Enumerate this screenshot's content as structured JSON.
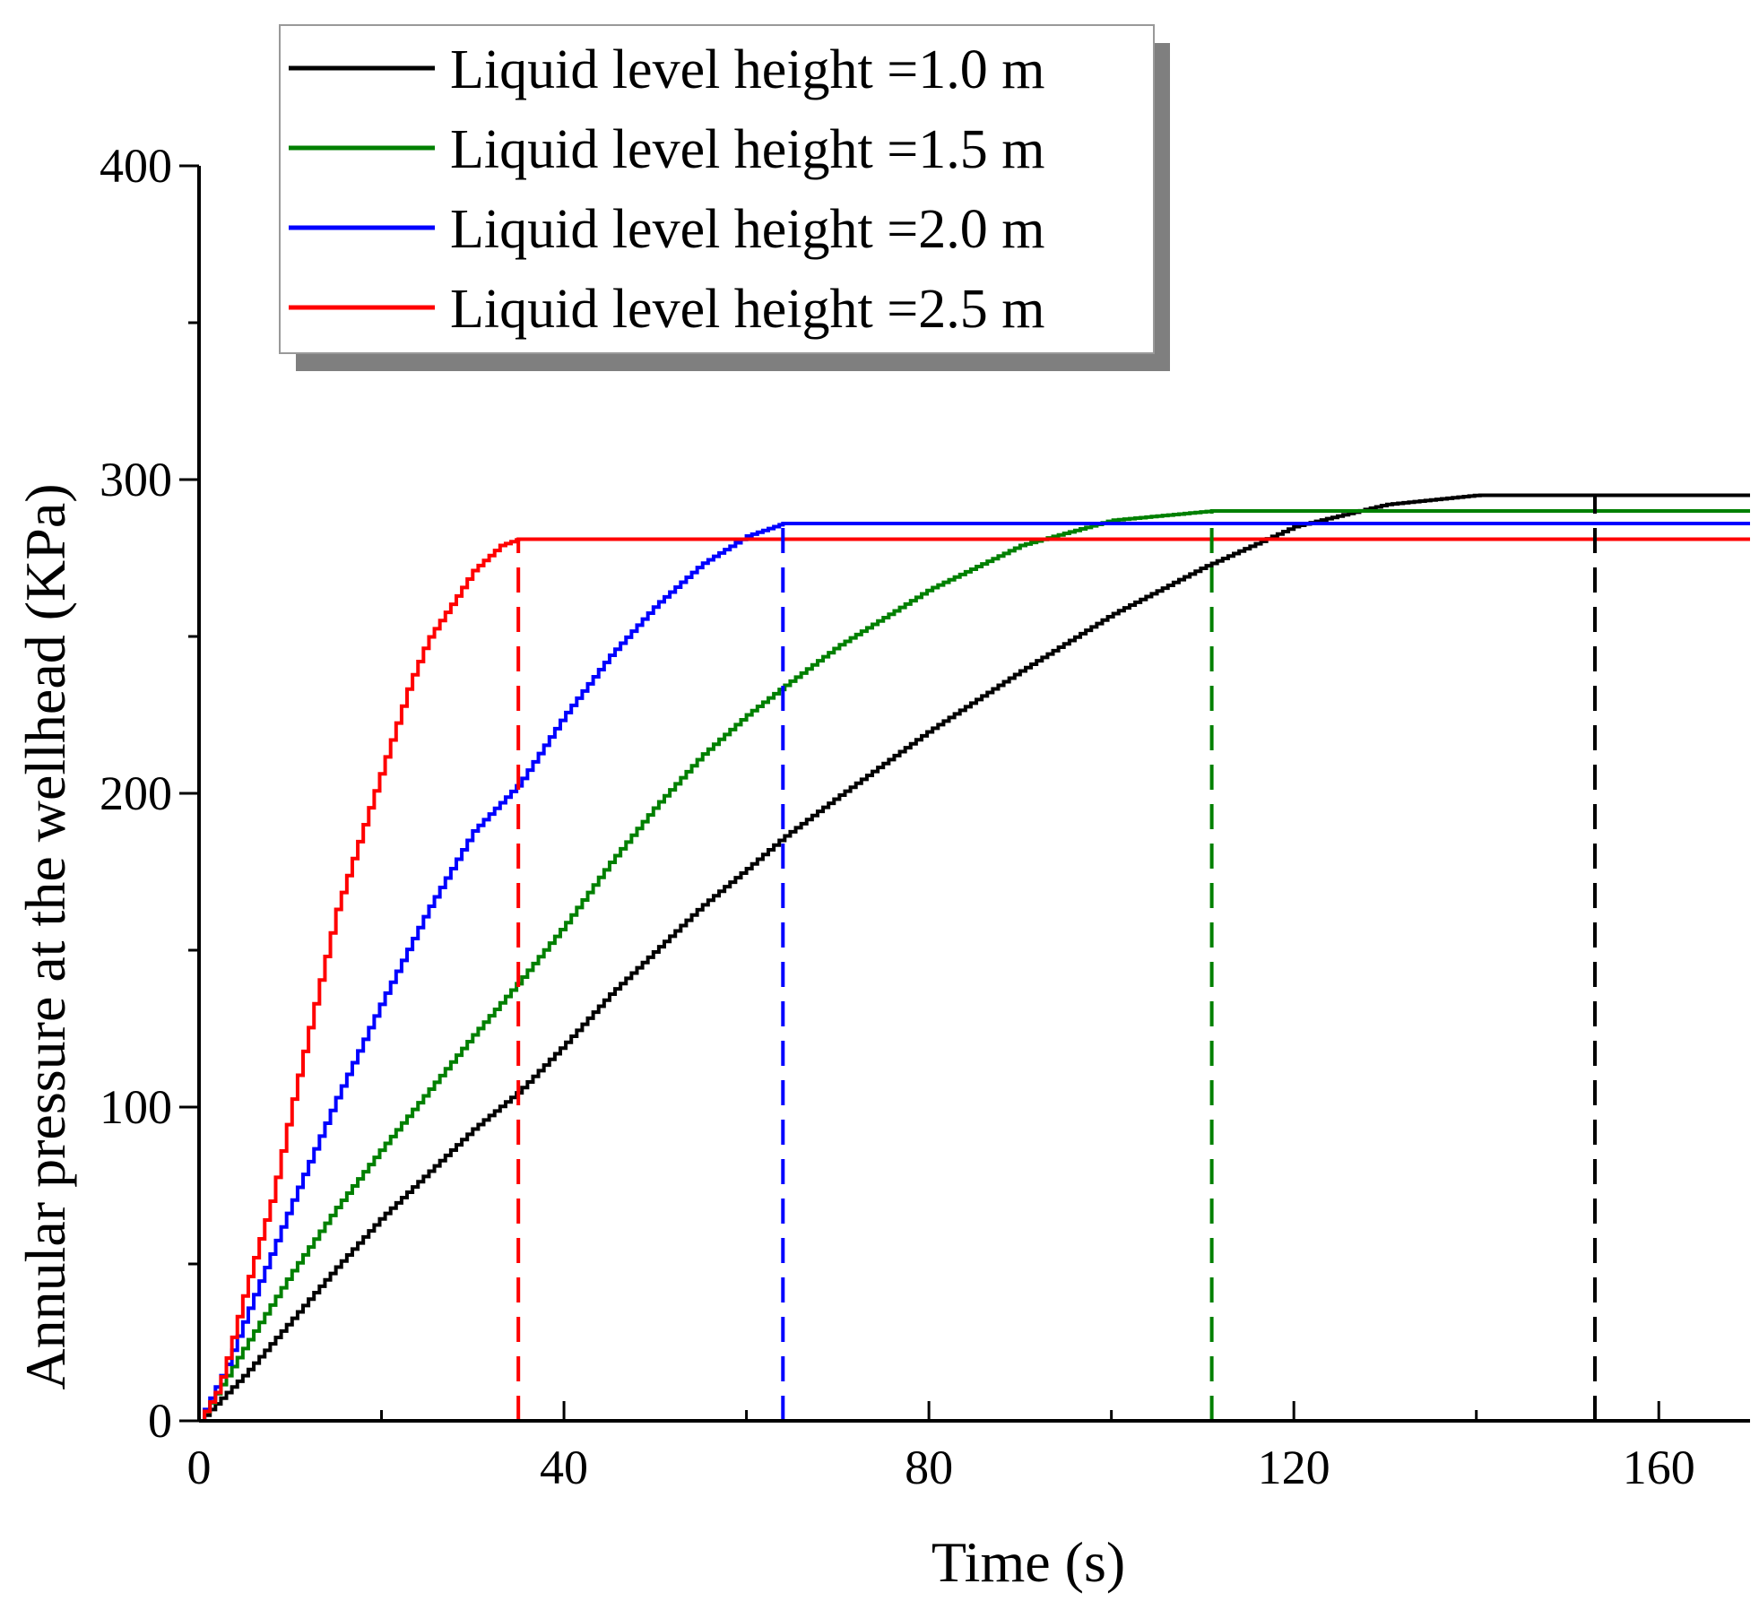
{
  "chart_data": {
    "type": "line",
    "title": "",
    "xlabel": "Time (s)",
    "ylabel": "Annular pressure at the wellhead (KPa)",
    "xlim": [
      0,
      170
    ],
    "ylim": [
      0,
      400
    ],
    "x_ticks": [
      0,
      40,
      80,
      120,
      160
    ],
    "x_minor_ticks": [
      20,
      60,
      100,
      140
    ],
    "y_ticks": [
      0,
      100,
      200,
      300,
      400
    ],
    "y_minor_ticks": [
      50,
      150,
      250,
      350
    ],
    "x_tick_labels": [
      "0",
      "40",
      "80",
      "120",
      "160"
    ],
    "y_tick_labels": [
      "0",
      "100",
      "200",
      "300",
      "400"
    ],
    "grid": false,
    "legend_position": "top-left",
    "series": [
      {
        "name": "Liquid level height =1.0 m",
        "color": "#000000",
        "end_time": 153,
        "end_pressure": 295,
        "points": [
          [
            0,
            0
          ],
          [
            5,
            15
          ],
          [
            10,
            32
          ],
          [
            15,
            49
          ],
          [
            20,
            65
          ],
          [
            25,
            79
          ],
          [
            30,
            93
          ],
          [
            35,
            105
          ],
          [
            40,
            120
          ],
          [
            45,
            136
          ],
          [
            50,
            150
          ],
          [
            55,
            164
          ],
          [
            60,
            176
          ],
          [
            64,
            186
          ],
          [
            70,
            199
          ],
          [
            80,
            220
          ],
          [
            90,
            239
          ],
          [
            100,
            257
          ],
          [
            110,
            272
          ],
          [
            120,
            285
          ],
          [
            130,
            292
          ],
          [
            140,
            295
          ],
          [
            153,
            295
          ],
          [
            170,
            295
          ]
        ]
      },
      {
        "name": "Liquid level height =1.5 m",
        "color": "#008000",
        "end_time": 111,
        "end_pressure": 290,
        "points": [
          [
            0,
            0
          ],
          [
            5,
            24
          ],
          [
            10,
            47
          ],
          [
            15,
            68
          ],
          [
            20,
            87
          ],
          [
            25,
            105
          ],
          [
            30,
            123
          ],
          [
            35,
            140
          ],
          [
            40,
            158
          ],
          [
            45,
            178
          ],
          [
            50,
            196
          ],
          [
            55,
            212
          ],
          [
            60,
            225
          ],
          [
            64,
            234
          ],
          [
            70,
            247
          ],
          [
            80,
            265
          ],
          [
            90,
            279
          ],
          [
            100,
            287
          ],
          [
            111,
            290
          ],
          [
            170,
            290
          ]
        ]
      },
      {
        "name": "Liquid level height =2.0 m",
        "color": "#0000ff",
        "end_time": 64,
        "end_pressure": 286,
        "points": [
          [
            0,
            0
          ],
          [
            3,
            18
          ],
          [
            5,
            33
          ],
          [
            10,
            69
          ],
          [
            15,
            103
          ],
          [
            20,
            134
          ],
          [
            25,
            163
          ],
          [
            30,
            188
          ],
          [
            35,
            203
          ],
          [
            40,
            225
          ],
          [
            45,
            244
          ],
          [
            50,
            260
          ],
          [
            55,
            273
          ],
          [
            60,
            282
          ],
          [
            64,
            286
          ],
          [
            170,
            286
          ]
        ]
      },
      {
        "name": "Liquid level height =2.5 m",
        "color": "#ff0000",
        "end_time": 35,
        "end_pressure": 281,
        "points": [
          [
            0,
            0
          ],
          [
            2,
            10
          ],
          [
            3,
            20
          ],
          [
            5,
            42
          ],
          [
            8,
            72
          ],
          [
            10,
            100
          ],
          [
            13,
            138
          ],
          [
            15,
            163
          ],
          [
            18,
            190
          ],
          [
            20,
            208
          ],
          [
            23,
            235
          ],
          [
            25,
            249
          ],
          [
            28,
            262
          ],
          [
            30,
            271
          ],
          [
            33,
            279
          ],
          [
            35,
            281
          ],
          [
            170,
            281
          ]
        ]
      }
    ]
  }
}
